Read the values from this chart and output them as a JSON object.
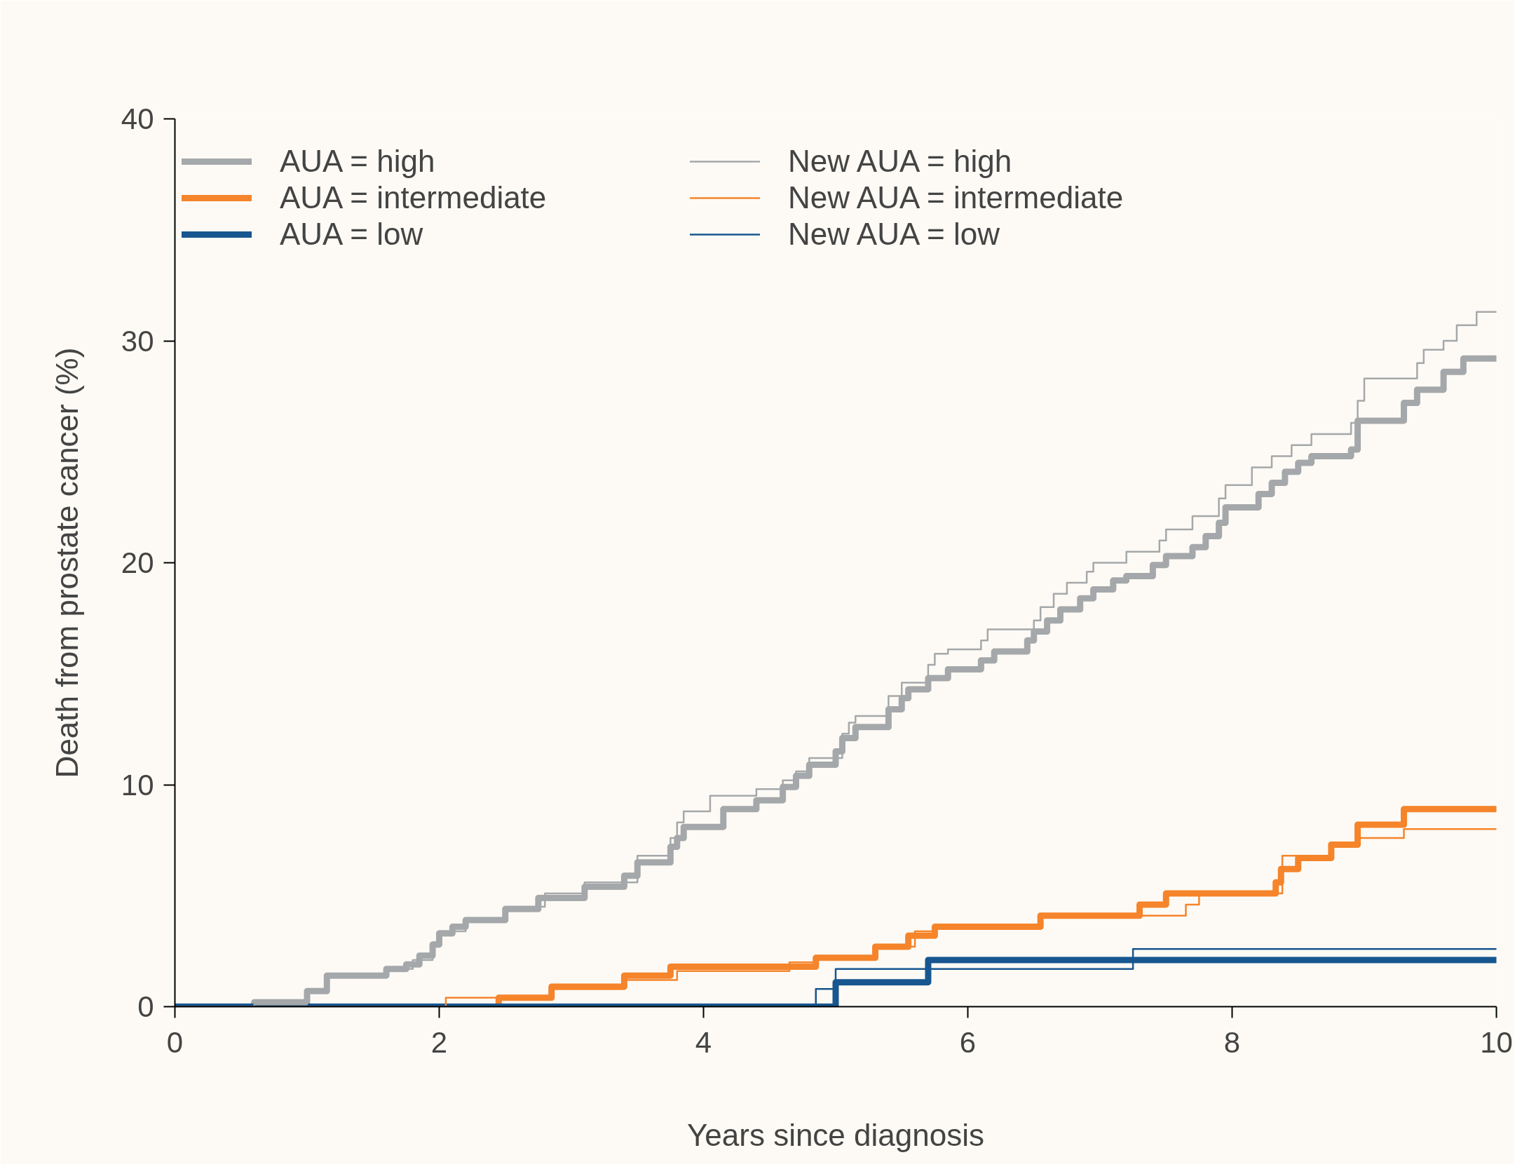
{
  "chart_data": {
    "type": "step",
    "xlabel": "Years since diagnosis",
    "ylabel": "Death from prostate cancer (%)",
    "xlim": [
      0,
      10
    ],
    "ylim": [
      0,
      40
    ],
    "xticks": [
      0,
      2,
      4,
      6,
      8,
      10
    ],
    "yticks": [
      0,
      10,
      20,
      30,
      40
    ],
    "grid": false,
    "legend": "top left",
    "marker": "none",
    "series": [
      {
        "name": "AUA = high",
        "color": "#a5a8aa",
        "x": [
          0,
          0.6,
          1.0,
          1.15,
          1.6,
          1.75,
          1.85,
          1.95,
          2.0,
          2.1,
          2.2,
          2.5,
          2.75,
          3.1,
          3.4,
          3.5,
          3.75,
          3.8,
          3.85,
          4.15,
          4.4,
          4.6,
          4.7,
          4.8,
          5.0,
          5.05,
          5.15,
          5.4,
          5.5,
          5.55,
          5.7,
          5.85,
          6.1,
          6.2,
          6.45,
          6.5,
          6.6,
          6.7,
          6.85,
          6.95,
          7.1,
          7.2,
          7.4,
          7.5,
          7.7,
          7.8,
          7.9,
          7.95,
          8.2,
          8.3,
          8.4,
          8.5,
          8.6,
          8.9,
          8.95,
          9.3,
          9.4,
          9.6,
          9.75,
          10
        ],
        "values": [
          0,
          0.2,
          0.7,
          1.4,
          1.7,
          1.9,
          2.3,
          2.8,
          3.3,
          3.6,
          3.9,
          4.4,
          4.9,
          5.4,
          5.9,
          6.5,
          7.2,
          7.6,
          8.1,
          8.9,
          9.3,
          9.9,
          10.4,
          10.9,
          11.5,
          12.1,
          12.6,
          13.4,
          13.9,
          14.3,
          14.8,
          15.2,
          15.6,
          16.0,
          16.5,
          16.9,
          17.4,
          17.9,
          18.4,
          18.8,
          19.2,
          19.4,
          19.9,
          20.3,
          20.7,
          21.2,
          21.8,
          22.5,
          23.1,
          23.6,
          24.1,
          24.5,
          24.8,
          25.1,
          26.4,
          27.2,
          27.8,
          28.6,
          29.2,
          29.2
        ]
      },
      {
        "name": "AUA = intermediate",
        "color": "#f5842b",
        "x": [
          0,
          2.45,
          2.85,
          3.4,
          3.75,
          4.85,
          5.3,
          5.55,
          5.75,
          6.55,
          7.3,
          7.5,
          8.33,
          8.37,
          8.5,
          8.75,
          8.95,
          9.3,
          10
        ],
        "values": [
          0,
          0.4,
          0.9,
          1.4,
          1.8,
          2.2,
          2.7,
          3.2,
          3.6,
          4.1,
          4.6,
          5.1,
          5.6,
          6.2,
          6.7,
          7.3,
          8.2,
          8.9,
          8.9
        ]
      },
      {
        "name": "AUA = low",
        "color": "#17568f",
        "x": [
          0,
          5.0,
          5.7,
          10
        ],
        "values": [
          0,
          1.1,
          2.1,
          2.1
        ]
      },
      {
        "name": "New AUA = high",
        "color": "#a5a8aa",
        "x": [
          0,
          0.6,
          1.0,
          1.15,
          1.6,
          1.8,
          1.95,
          2.0,
          2.2,
          2.5,
          2.8,
          3.1,
          3.5,
          3.75,
          3.8,
          3.85,
          4.05,
          4.4,
          4.6,
          4.7,
          4.8,
          5.05,
          5.1,
          5.15,
          5.4,
          5.5,
          5.7,
          5.75,
          5.85,
          6.1,
          6.15,
          6.5,
          6.55,
          6.65,
          6.75,
          6.9,
          6.95,
          7.2,
          7.45,
          7.5,
          7.7,
          7.9,
          7.95,
          8.15,
          8.3,
          8.45,
          8.6,
          8.9,
          8.95,
          9.0,
          9.4,
          9.45,
          9.6,
          9.7,
          9.85,
          10
        ],
        "values": [
          0,
          0.1,
          0.7,
          1.4,
          1.7,
          2.1,
          2.9,
          3.4,
          3.9,
          4.5,
          5.1,
          5.6,
          6.8,
          7.6,
          8.3,
          8.8,
          9.5,
          9.8,
          10.2,
          10.6,
          11.2,
          12.3,
          12.8,
          13.1,
          14.0,
          14.6,
          15.4,
          15.9,
          16.1,
          16.5,
          17.0,
          17.4,
          18.0,
          18.6,
          19.1,
          19.6,
          20.0,
          20.5,
          21.0,
          21.5,
          22.1,
          22.9,
          23.5,
          24.3,
          24.8,
          25.3,
          25.8,
          26.3,
          27.3,
          28.3,
          29.0,
          29.6,
          30.0,
          30.7,
          31.3,
          31.3
        ]
      },
      {
        "name": "New AUA = intermediate",
        "color": "#f5842b",
        "x": [
          0,
          2.05,
          2.85,
          3.4,
          3.8,
          4.65,
          4.85,
          5.3,
          5.6,
          5.75,
          6.55,
          7.65,
          7.75,
          8.38,
          8.75,
          8.95,
          9.3,
          10
        ],
        "values": [
          0,
          0.4,
          0.8,
          1.2,
          1.6,
          2.0,
          2.2,
          2.7,
          3.4,
          3.6,
          4.1,
          4.6,
          5.1,
          6.8,
          7.3,
          7.6,
          8.0,
          8.0
        ]
      },
      {
        "name": "New AUA = low",
        "color": "#17568f",
        "x": [
          0,
          4.85,
          5.0,
          7.25,
          10
        ],
        "values": [
          0,
          0.8,
          1.7,
          2.6,
          2.6
        ]
      }
    ]
  }
}
